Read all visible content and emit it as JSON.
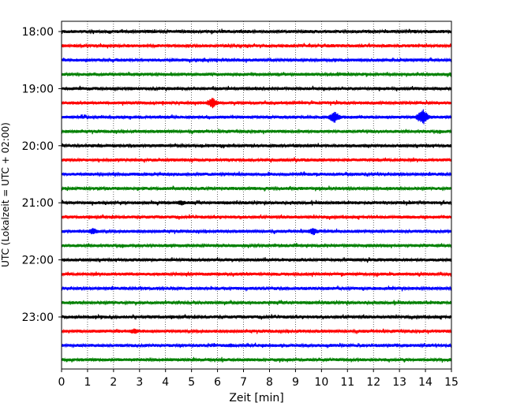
{
  "chart_data": {
    "type": "helicorder",
    "xlabel": "Zeit  [min]",
    "ylabel": "UTC (Lokalzeit = UTC + 02:00)",
    "xlim": [
      0,
      15
    ],
    "x_ticks": [
      0,
      1,
      2,
      3,
      4,
      5,
      6,
      7,
      8,
      9,
      10,
      11,
      12,
      13,
      14,
      15
    ],
    "y_tick_labels": [
      "18:00",
      "19:00",
      "20:00",
      "21:00",
      "22:00",
      "23:00"
    ],
    "start_time": "18:00",
    "line_interval_minutes": 15,
    "grid_x": true,
    "colors": [
      "#000000",
      "#ff0000",
      "#0000ff",
      "#008000"
    ],
    "traces": [
      {
        "start": "18:00",
        "amplitude": 2
      },
      {
        "start": "18:15",
        "amplitude": 2
      },
      {
        "start": "18:30",
        "amplitude": 2
      },
      {
        "start": "18:45",
        "amplitude": 2
      },
      {
        "start": "19:00",
        "amplitude": 2
      },
      {
        "start": "19:15",
        "amplitude": 2,
        "events": [
          {
            "t": 5.8,
            "amplitude": 7
          }
        ]
      },
      {
        "start": "19:30",
        "amplitude": 2,
        "events": [
          {
            "t": 10.5,
            "amplitude": 8
          },
          {
            "t": 13.9,
            "amplitude": 11
          }
        ]
      },
      {
        "start": "19:45",
        "amplitude": 2
      },
      {
        "start": "20:00",
        "amplitude": 2
      },
      {
        "start": "20:15",
        "amplitude": 2
      },
      {
        "start": "20:30",
        "amplitude": 2
      },
      {
        "start": "20:45",
        "amplitude": 2
      },
      {
        "start": "21:00",
        "amplitude": 2,
        "events": [
          {
            "t": 4.6,
            "amplitude": 4
          }
        ]
      },
      {
        "start": "21:15",
        "amplitude": 2
      },
      {
        "start": "21:30",
        "amplitude": 2,
        "events": [
          {
            "t": 1.2,
            "amplitude": 5
          },
          {
            "t": 9.7,
            "amplitude": 5
          }
        ]
      },
      {
        "start": "21:45",
        "amplitude": 2
      },
      {
        "start": "22:00",
        "amplitude": 2
      },
      {
        "start": "22:15",
        "amplitude": 2
      },
      {
        "start": "22:30",
        "amplitude": 2
      },
      {
        "start": "22:45",
        "amplitude": 2
      },
      {
        "start": "23:00",
        "amplitude": 2
      },
      {
        "start": "23:15",
        "amplitude": 2,
        "events": [
          {
            "t": 2.8,
            "amplitude": 4
          }
        ]
      },
      {
        "start": "23:30",
        "amplitude": 2,
        "events": [
          {
            "t": 6.5,
            "amplitude": 3
          }
        ]
      },
      {
        "start": "23:45",
        "amplitude": 2
      }
    ]
  }
}
